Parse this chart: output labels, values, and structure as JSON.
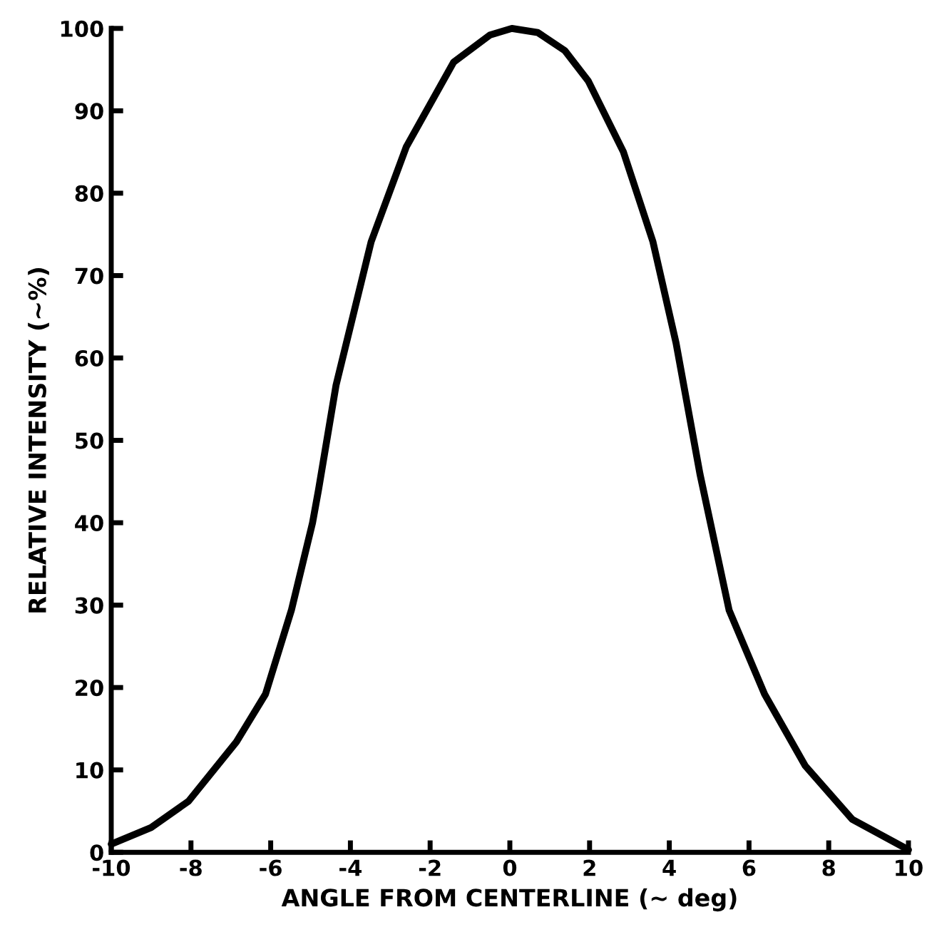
{
  "chart_data": {
    "type": "line",
    "xlabel": "ANGLE FROM CENTERLINE (~ deg)",
    "ylabel": "RELATIVE INTENSITY (~%)",
    "series": [
      {
        "color": "#000000",
        "x": [
          -10,
          -9,
          -8.06,
          -6.86,
          -6.13,
          -5.48,
          -4.95,
          -4.8,
          -4.36,
          -3.48,
          -2.6,
          -1.41,
          -0.5,
          0.05,
          0.7,
          1.38,
          1.97,
          2.85,
          3.59,
          4.17,
          4.77,
          5.5,
          6.39,
          7.41,
          8.59,
          10
        ],
        "values": [
          1,
          3,
          6.2,
          13.4,
          19.2,
          29.4,
          40,
          44,
          56.7,
          74.1,
          85.6,
          95.9,
          99.2,
          100,
          99.5,
          97.3,
          93.6,
          85,
          74.1,
          61.8,
          45.9,
          29.4,
          19.2,
          10.5,
          4,
          0.3
        ]
      }
    ],
    "xlim": [
      -10,
      10
    ],
    "ylim": [
      0,
      100
    ],
    "xticks": [
      {
        "value": -10,
        "label": "-10"
      },
      {
        "value": -8,
        "label": "-8"
      },
      {
        "value": -6,
        "label": "-6"
      },
      {
        "value": -4,
        "label": "-4"
      },
      {
        "value": -2,
        "label": "-2"
      },
      0,
      2,
      4,
      6,
      8,
      10
    ],
    "yticks": [
      0,
      10,
      20,
      30,
      40,
      50,
      60,
      70,
      80,
      90,
      100
    ],
    "grid": false,
    "legend": false,
    "marker": "none",
    "line_style": "solid"
  }
}
